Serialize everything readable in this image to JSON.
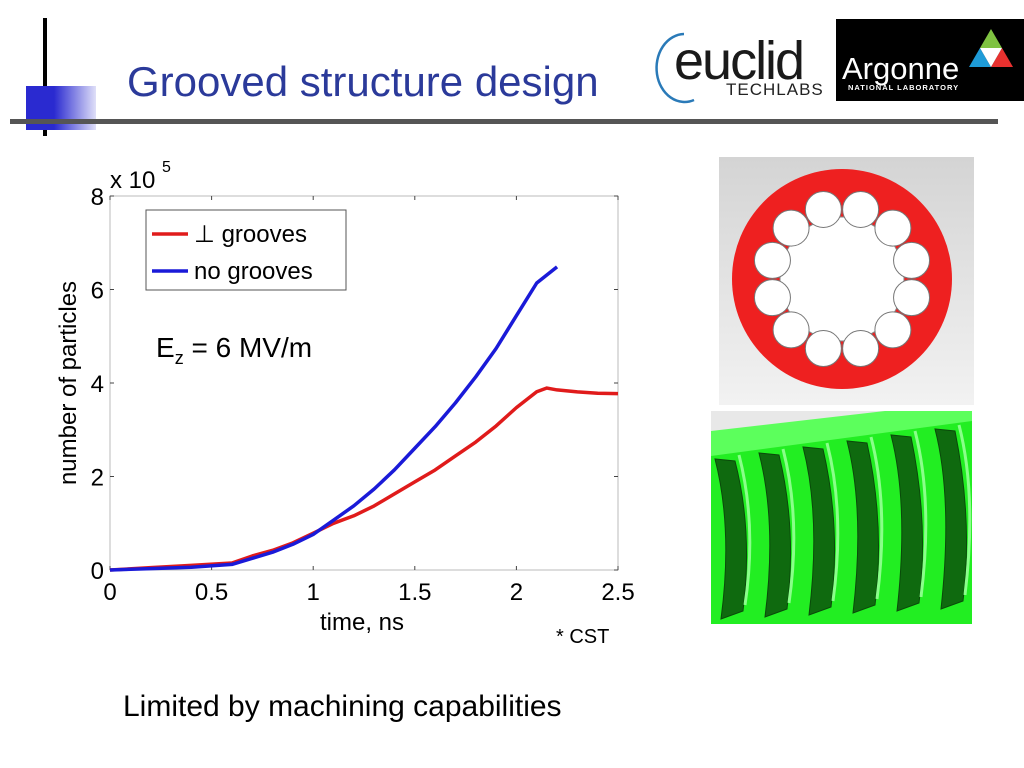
{
  "slide": {
    "title": "Grooved structure design",
    "footnote": "Limited by machining capabilities",
    "source_note": "* CST"
  },
  "logos": {
    "euclid": {
      "word": "euclid",
      "sub": "TECHLABS"
    },
    "argonne": {
      "word": "Argonne",
      "sub": "NATIONAL LABORATORY"
    }
  },
  "colors": {
    "title": "#2b3a9a",
    "series_grooves": "#e01b1b",
    "series_no_grooves": "#1a1ad8",
    "cavity_red": "#ee2020",
    "structure_green": "#22ee22"
  },
  "chart_data": {
    "type": "line",
    "title": "",
    "xlabel": "time, ns",
    "ylabel": "number of particles",
    "y_multiplier": "x 10",
    "y_multiplier_exp": "5",
    "xlim": [
      0,
      2.5
    ],
    "ylim": [
      0,
      8
    ],
    "x_ticks": [
      "0",
      "0.5",
      "1",
      "1.5",
      "2",
      "2.5"
    ],
    "y_ticks": [
      "0",
      "2",
      "4",
      "6",
      "8"
    ],
    "grid": false,
    "legend_position": "top-left",
    "annotation": {
      "main": "E",
      "sub": "z",
      "rest": " = 6 MV/m"
    },
    "series": [
      {
        "name": "⊥ grooves",
        "color": "#e01b1b",
        "x": [
          0,
          0.2,
          0.4,
          0.6,
          0.7,
          0.8,
          0.9,
          1.0,
          1.1,
          1.2,
          1.3,
          1.4,
          1.5,
          1.6,
          1.7,
          1.8,
          1.9,
          2.0,
          2.1,
          2.15,
          2.2,
          2.3,
          2.4,
          2.5
        ],
        "y": [
          0,
          0.05,
          0.1,
          0.15,
          0.3,
          0.42,
          0.58,
          0.8,
          1.0,
          1.15,
          1.35,
          1.6,
          1.85,
          2.1,
          2.4,
          2.7,
          3.05,
          3.45,
          3.8,
          3.9,
          3.85,
          3.82,
          3.8,
          3.8
        ]
      },
      {
        "name": "no grooves",
        "color": "#1a1ad8",
        "x": [
          0,
          0.2,
          0.4,
          0.6,
          0.7,
          0.8,
          0.9,
          1.0,
          1.1,
          1.2,
          1.3,
          1.4,
          1.5,
          1.6,
          1.7,
          1.8,
          1.9,
          2.0,
          2.1,
          2.2
        ],
        "y": [
          0,
          0.03,
          0.06,
          0.12,
          0.25,
          0.38,
          0.55,
          0.8,
          1.1,
          1.4,
          1.75,
          2.15,
          2.6,
          3.05,
          3.55,
          4.1,
          4.7,
          5.4,
          6.1,
          6.45
        ]
      }
    ]
  }
}
